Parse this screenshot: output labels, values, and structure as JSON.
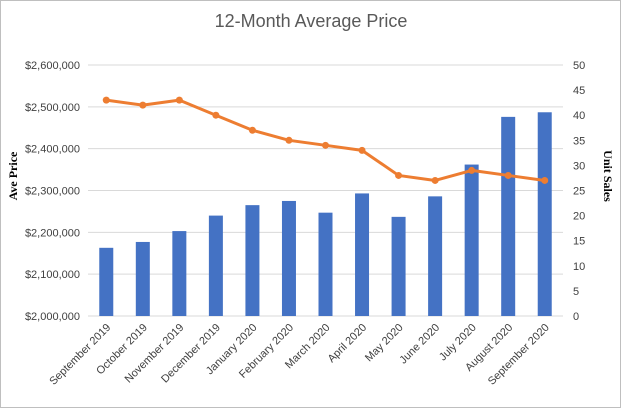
{
  "chart_data": {
    "type": "bar",
    "title": "12-Month Average Price",
    "categories": [
      "September 2019",
      "October 2019",
      "November 2019",
      "December 2019",
      "January 2020",
      "February 2020",
      "March 2020",
      "April 2020",
      "May 2020",
      "June 2020",
      "July 2020",
      "August 2020",
      "September 2020"
    ],
    "series": [
      {
        "type": "bar",
        "axis": "left",
        "color": "#4472C4",
        "values": [
          2163000,
          2177000,
          2203000,
          2240000,
          2265000,
          2275000,
          2247000,
          2293000,
          2237000,
          2286000,
          2362000,
          2476000,
          2487000
        ]
      },
      {
        "type": "line",
        "axis": "right",
        "color": "#ED7D31",
        "values": [
          43,
          42,
          43,
          40,
          37,
          35,
          34,
          33,
          28,
          27,
          29,
          28,
          27
        ]
      }
    ],
    "y_left": {
      "label": "Ave Price",
      "ylim": [
        2000000,
        2600000
      ],
      "ticks": [
        "$2,000,000",
        "$2,100,000",
        "$2,200,000",
        "$2,300,000",
        "$2,400,000",
        "$2,500,000",
        "$2,600,000"
      ]
    },
    "y_right": {
      "label": "Unit Sales",
      "ylim": [
        0,
        50
      ],
      "ticks": [
        "0",
        "5",
        "10",
        "15",
        "20",
        "25",
        "30",
        "35",
        "40",
        "45",
        "50"
      ]
    },
    "grid": true,
    "legend": "none"
  }
}
